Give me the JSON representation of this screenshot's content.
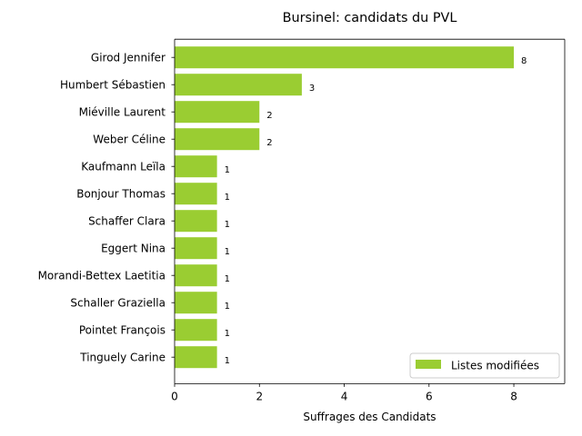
{
  "chart_data": {
    "type": "bar",
    "orientation": "horizontal",
    "title": "Bursinel: candidats du PVL",
    "xlabel": "Suffrages des Candidats",
    "ylabel": "",
    "categories": [
      "Girod Jennifer",
      "Humbert Sébastien",
      "Miéville Laurent",
      "Weber Céline",
      "Kaufmann Leïla",
      "Bonjour Thomas",
      "Schaffer Clara",
      "Eggert Nina",
      "Morandi-Bettex Laetitia",
      "Schaller Graziella",
      "Pointet François",
      "Tinguely Carine"
    ],
    "series": [
      {
        "name": "Listes modifiées",
        "color": "#9acd32",
        "values": [
          8,
          3,
          2,
          2,
          1,
          1,
          1,
          1,
          1,
          1,
          1,
          1
        ]
      }
    ],
    "data_labels": [
      "8",
      "3",
      "2",
      "2",
      "1",
      "1",
      "1",
      "1",
      "1",
      "1",
      "1",
      "1"
    ],
    "xlim": [
      0,
      9.2
    ],
    "xticks": [
      0,
      2,
      4,
      6,
      8
    ],
    "xtick_labels": [
      "0",
      "2",
      "4",
      "6",
      "8"
    ],
    "grid": false,
    "legend_position": "lower right"
  }
}
